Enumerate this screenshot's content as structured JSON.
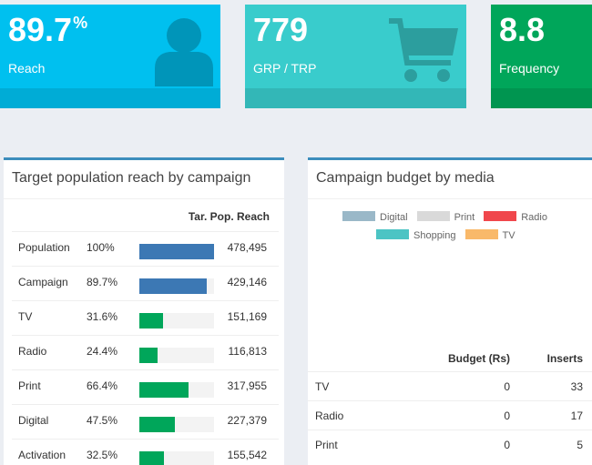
{
  "kpis": [
    {
      "value": "89.7",
      "unit": "%",
      "label": "Reach",
      "color": "#00c0ef",
      "icon": "user-icon"
    },
    {
      "value": "779",
      "unit": "",
      "label": "GRP / TRP",
      "color": "#39cccc",
      "icon": "shopping-cart-icon"
    },
    {
      "value": "8.8",
      "unit": "",
      "label": "Frequency",
      "color": "#00a65a",
      "icon": "none"
    }
  ],
  "reach_panel": {
    "title": "Target population reach by campaign",
    "column_header": "Tar. Pop. Reach",
    "rows": [
      {
        "name": "Population",
        "pct": "100%",
        "value": "478,495",
        "bar_fraction": 1.0,
        "color": "#3c78b4"
      },
      {
        "name": "Campaign",
        "pct": "89.7%",
        "value": "429,146",
        "bar_fraction": 0.897,
        "color": "#3c78b4"
      },
      {
        "name": "TV",
        "pct": "31.6%",
        "value": "151,169",
        "bar_fraction": 0.316,
        "color": "#00a65a"
      },
      {
        "name": "Radio",
        "pct": "24.4%",
        "value": "116,813",
        "bar_fraction": 0.244,
        "color": "#00a65a"
      },
      {
        "name": "Print",
        "pct": "66.4%",
        "value": "317,955",
        "bar_fraction": 0.664,
        "color": "#00a65a"
      },
      {
        "name": "Digital",
        "pct": "47.5%",
        "value": "227,379",
        "bar_fraction": 0.475,
        "color": "#00a65a"
      },
      {
        "name": "Activation",
        "pct": "32.5%",
        "value": "155,542",
        "bar_fraction": 0.325,
        "color": "#00a65a"
      }
    ]
  },
  "budget_panel": {
    "title": "Campaign budget by media",
    "legend": [
      {
        "label": "Digital",
        "color": "#9ab8c8"
      },
      {
        "label": "Print",
        "color": "#d9d9d9"
      },
      {
        "label": "Radio",
        "color": "#f0474c"
      },
      {
        "label": "Shopping",
        "color": "#4cc4c4"
      },
      {
        "label": "TV",
        "color": "#f9b96a"
      }
    ],
    "headers": {
      "budget": "Budget (Rs)",
      "inserts": "Inserts"
    },
    "rows": [
      {
        "media": "TV",
        "budget": "0",
        "inserts": "33"
      },
      {
        "media": "Radio",
        "budget": "0",
        "inserts": "17"
      },
      {
        "media": "Print",
        "budget": "0",
        "inserts": "5"
      }
    ]
  }
}
